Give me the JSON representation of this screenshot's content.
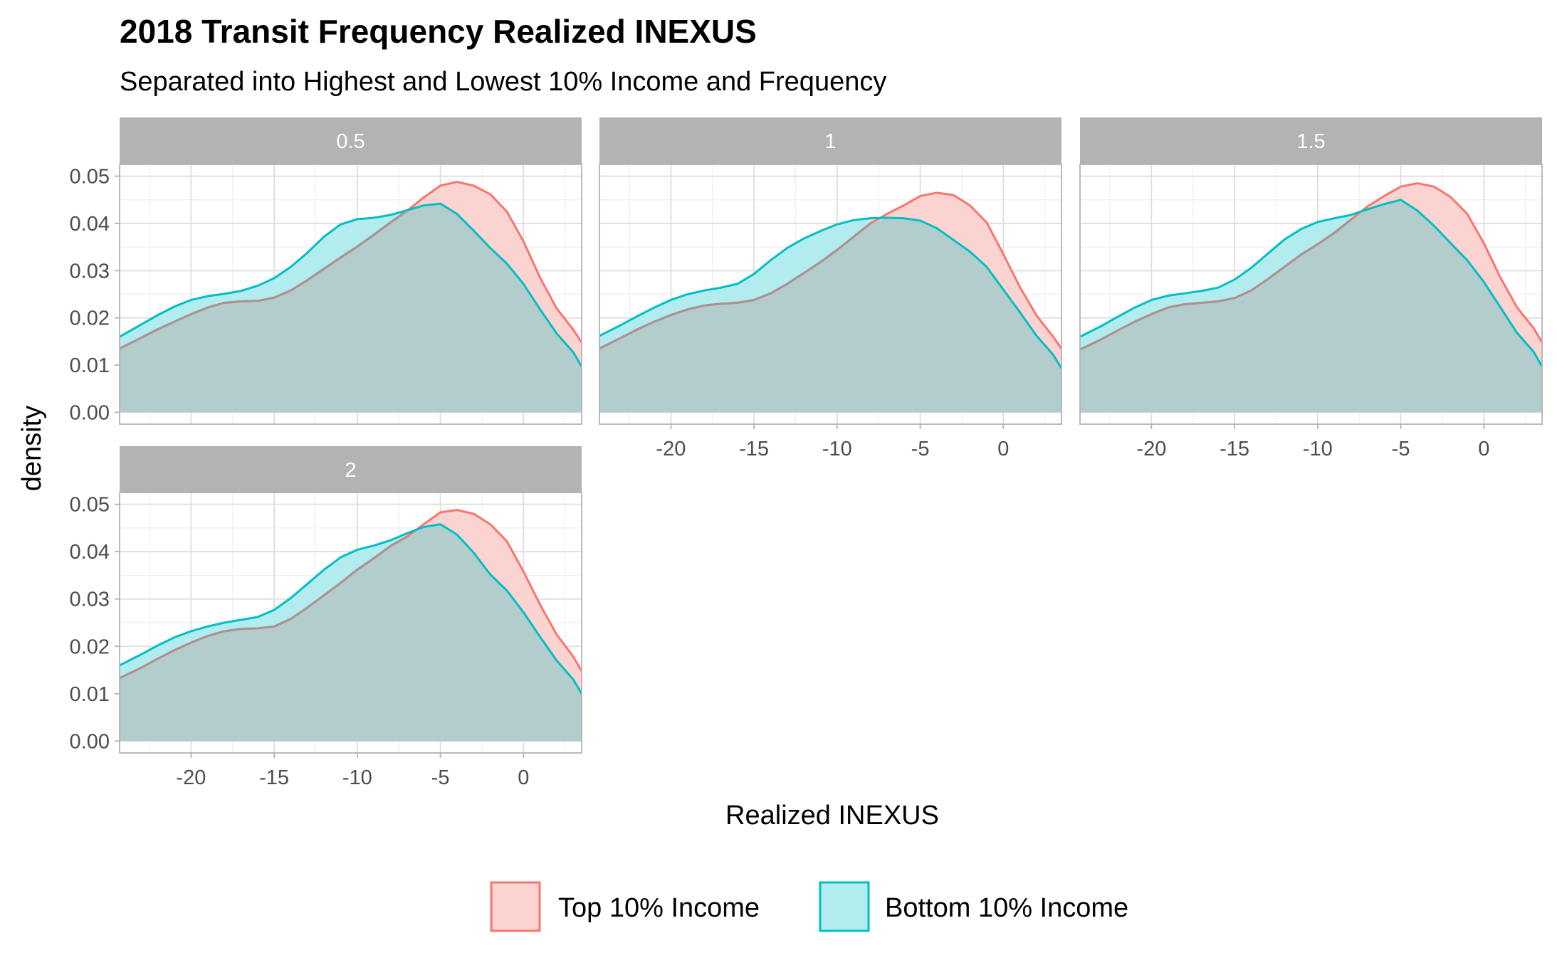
{
  "chart_data": {
    "type": "area",
    "title": "2018 Transit Frequency Realized INEXUS",
    "subtitle": "Separated into Highest and Lowest 10% Income and Frequency",
    "xlabel": "Realized INEXUS",
    "ylabel": "density",
    "xlim": [
      -24.3,
      3.5
    ],
    "ylim": [
      -0.0025,
      0.0525
    ],
    "x_ticks": [
      -20,
      -15,
      -10,
      -5,
      0
    ],
    "x_tick_labels": [
      "-20",
      "-15",
      "-10",
      "-5",
      "0"
    ],
    "y_ticks": [
      0,
      0.01,
      0.02,
      0.03,
      0.04,
      0.05
    ],
    "y_tick_labels": [
      "0.00",
      "0.01",
      "0.02",
      "0.03",
      "0.04",
      "0.05"
    ],
    "grid": true,
    "legend_position": "bottom",
    "colors": {
      "top": "#F8766D",
      "bottom": "#00BFC4",
      "top_fill": "#FBD3D1",
      "bottom_fill": "#B2ECEE",
      "overlap_fill": "#B3CCCC",
      "strip_bg": "#B3B3B3",
      "grid_major": "#DEDEDE",
      "grid_minor": "#EFEFEF",
      "panel_border": "#B3B3B3"
    },
    "legend": [
      {
        "key": "top",
        "label": "Top 10% Income"
      },
      {
        "key": "bottom",
        "label": "Bottom 10% Income"
      }
    ],
    "x": [
      -24.3,
      -23,
      -22,
      -21,
      -20,
      -19,
      -18,
      -17,
      -16,
      -15,
      -14,
      -13,
      -12,
      -11,
      -10,
      -9,
      -8,
      -7,
      -6,
      -5,
      -4,
      -3,
      -2,
      -1,
      0,
      1,
      2,
      3,
      3.5
    ],
    "panels": [
      {
        "label": "0.5",
        "series": [
          {
            "key": "top",
            "name": "Top 10% Income",
            "values": [
              0.0135,
              0.0158,
              0.0176,
              0.0192,
              0.0208,
              0.0222,
              0.0232,
              0.0235,
              0.0236,
              0.0243,
              0.0258,
              0.028,
              0.0304,
              0.0328,
              0.0351,
              0.0376,
              0.0402,
              0.0427,
              0.0455,
              0.048,
              0.0488,
              0.048,
              0.0462,
              0.0425,
              0.0362,
              0.0285,
              0.022,
              0.0175,
              0.0148
            ]
          },
          {
            "key": "bottom",
            "name": "Bottom 10% Income",
            "values": [
              0.016,
              0.0186,
              0.0206,
              0.0224,
              0.0238,
              0.0246,
              0.0251,
              0.0257,
              0.0268,
              0.0284,
              0.0308,
              0.0338,
              0.0372,
              0.0398,
              0.0409,
              0.0412,
              0.0418,
              0.0428,
              0.0438,
              0.0442,
              0.042,
              0.0385,
              0.0348,
              0.0315,
              0.0272,
              0.0218,
              0.0167,
              0.0127,
              0.0097
            ]
          }
        ]
      },
      {
        "label": "1",
        "series": [
          {
            "key": "top",
            "name": "Top 10% Income",
            "values": [
              0.0135,
              0.0158,
              0.0176,
              0.0192,
              0.0206,
              0.0218,
              0.0226,
              0.023,
              0.0232,
              0.0238,
              0.0252,
              0.0272,
              0.0295,
              0.0318,
              0.0344,
              0.0372,
              0.04,
              0.042,
              0.0438,
              0.0458,
              0.0465,
              0.046,
              0.0438,
              0.0402,
              0.0335,
              0.0265,
              0.0205,
              0.016,
              0.0135
            ]
          },
          {
            "key": "bottom",
            "name": "Bottom 10% Income",
            "values": [
              0.0162,
              0.0185,
              0.0204,
              0.0222,
              0.0238,
              0.025,
              0.0258,
              0.0264,
              0.0272,
              0.0293,
              0.0322,
              0.0348,
              0.0368,
              0.0384,
              0.0398,
              0.0407,
              0.0411,
              0.0412,
              0.0411,
              0.0406,
              0.039,
              0.0365,
              0.034,
              0.0308,
              0.026,
              0.0212,
              0.0162,
              0.0122,
              0.0093
            ]
          }
        ]
      },
      {
        "label": "1.5",
        "series": [
          {
            "key": "top",
            "name": "Top 10% Income",
            "values": [
              0.0133,
              0.0155,
              0.0174,
              0.0192,
              0.0208,
              0.0222,
              0.0229,
              0.0232,
              0.0235,
              0.0242,
              0.0258,
              0.0282,
              0.0308,
              0.0334,
              0.0356,
              0.038,
              0.0408,
              0.0436,
              0.0458,
              0.0478,
              0.0485,
              0.0478,
              0.0456,
              0.042,
              0.0358,
              0.0285,
              0.0222,
              0.0178,
              0.0148
            ]
          },
          {
            "key": "bottom",
            "name": "Bottom 10% Income",
            "values": [
              0.016,
              0.0183,
              0.0203,
              0.0222,
              0.0238,
              0.0247,
              0.0252,
              0.0257,
              0.0264,
              0.0281,
              0.0306,
              0.0336,
              0.0366,
              0.0388,
              0.0403,
              0.0411,
              0.0418,
              0.043,
              0.0441,
              0.045,
              0.0427,
              0.0395,
              0.0358,
              0.0322,
              0.0276,
              0.0222,
              0.0168,
              0.0128,
              0.0097
            ]
          }
        ]
      },
      {
        "label": "2",
        "series": [
          {
            "key": "top",
            "name": "Top 10% Income",
            "values": [
              0.0133,
              0.0155,
              0.0174,
              0.0192,
              0.0208,
              0.0222,
              0.0232,
              0.0237,
              0.0238,
              0.0242,
              0.0258,
              0.0282,
              0.0308,
              0.0334,
              0.0362,
              0.0386,
              0.0412,
              0.0432,
              0.0458,
              0.0483,
              0.0488,
              0.048,
              0.0458,
              0.0422,
              0.0358,
              0.0288,
              0.0225,
              0.0178,
              0.0148
            ]
          },
          {
            "key": "bottom",
            "name": "Bottom 10% Income",
            "values": [
              0.016,
              0.0183,
              0.0202,
              0.0219,
              0.0232,
              0.0242,
              0.025,
              0.0256,
              0.0262,
              0.0277,
              0.0302,
              0.0332,
              0.0362,
              0.0388,
              0.0404,
              0.0413,
              0.0424,
              0.0439,
              0.0452,
              0.0458,
              0.0436,
              0.0398,
              0.0352,
              0.0318,
              0.0272,
              0.022,
              0.017,
              0.013,
              0.01
            ]
          }
        ]
      }
    ]
  }
}
